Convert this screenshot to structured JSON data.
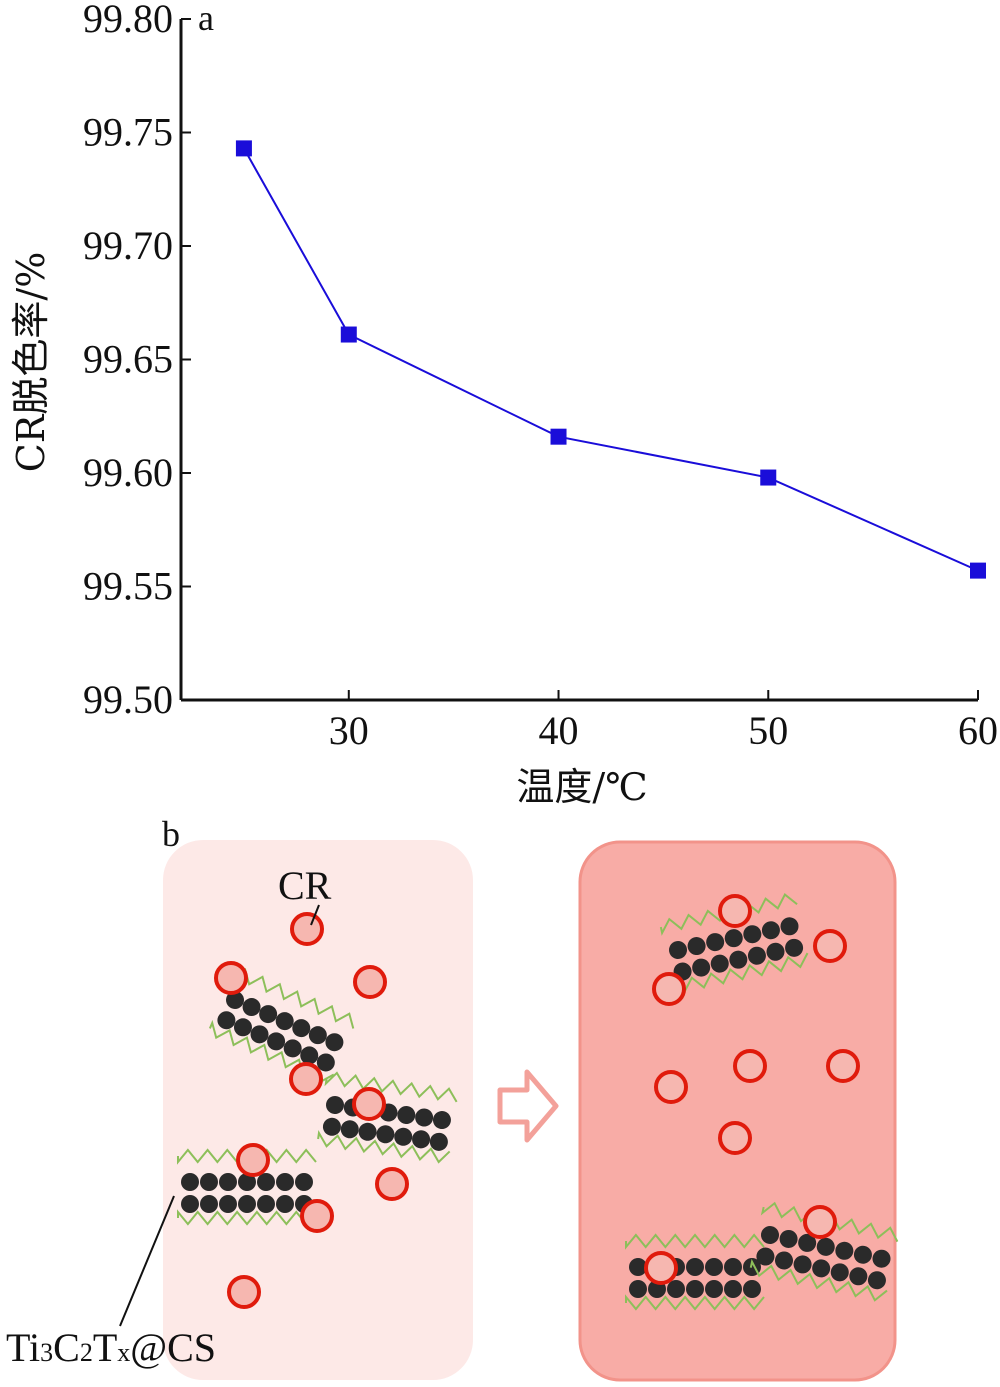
{
  "chart_data": {
    "type": "line",
    "panel_label": "a",
    "title": "",
    "xlabel": "温度/℃",
    "ylabel": "CR脱色率/%",
    "x": [
      25,
      30,
      40,
      50,
      60
    ],
    "series": [
      {
        "values": [
          99.743,
          99.661,
          99.616,
          99.598,
          99.557
        ],
        "color": "#1a0dd9",
        "marker": "square"
      }
    ],
    "xlim": [
      22,
      60
    ],
    "ylim": [
      99.5,
      99.8
    ],
    "xticks": [
      30,
      40,
      50,
      60
    ],
    "yticks": [
      "99.50",
      "99.55",
      "99.60",
      "99.65",
      "99.70",
      "99.75",
      "99.80"
    ],
    "grid": false
  },
  "schematic": {
    "panel_label": "b",
    "cr_label": "CR",
    "composite_label": {
      "base": "Ti",
      "s1": "3",
      "m1": "C",
      "s2": "2",
      "m2": "T",
      "s3": "x",
      "tail": "@CS"
    },
    "colors": {
      "left_panel": "#fde9e7",
      "right_panel": "#f8aca6",
      "cr_ring": "#e01b0c",
      "cr_fill": "#f6b7b0",
      "arrow": "#f3a19a",
      "sheet_atom": "#2a2a2a",
      "polymer": "#8dbf5a"
    }
  }
}
